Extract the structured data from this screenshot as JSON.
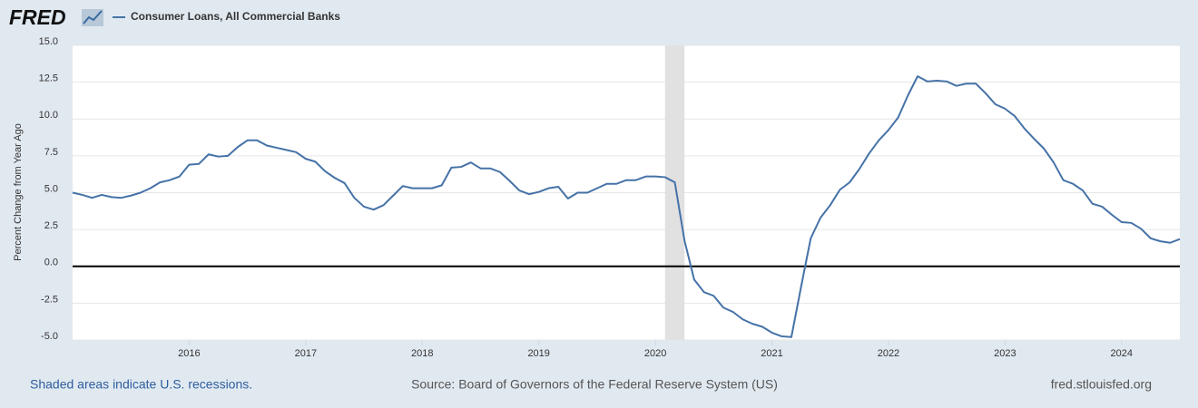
{
  "logo": "FRED",
  "chart_data": {
    "type": "line",
    "y_label": "Percent Change from Year Ago",
    "note": "Shaded areas indicate U.S. recessions.",
    "source": "Source: Board of Governors of the Federal Reserve System (US)",
    "website": "fred.stlouisfed.org",
    "x": [
      2015.0,
      2015.083,
      2015.167,
      2015.25,
      2015.333,
      2015.417,
      2015.5,
      2015.583,
      2015.667,
      2015.75,
      2015.833,
      2015.917,
      2016.0,
      2016.083,
      2016.167,
      2016.25,
      2016.333,
      2016.417,
      2016.5,
      2016.583,
      2016.667,
      2016.75,
      2016.833,
      2016.917,
      2017.0,
      2017.083,
      2017.167,
      2017.25,
      2017.333,
      2017.417,
      2017.5,
      2017.583,
      2017.667,
      2017.75,
      2017.833,
      2017.917,
      2018.0,
      2018.083,
      2018.167,
      2018.25,
      2018.333,
      2018.417,
      2018.5,
      2018.583,
      2018.667,
      2018.75,
      2018.833,
      2018.917,
      2019.0,
      2019.083,
      2019.167,
      2019.25,
      2019.333,
      2019.417,
      2019.5,
      2019.583,
      2019.667,
      2019.75,
      2019.833,
      2019.917,
      2020.0,
      2020.083,
      2020.167,
      2020.25,
      2020.333,
      2020.417,
      2020.5,
      2020.583,
      2020.667,
      2020.75,
      2020.833,
      2020.917,
      2021.0,
      2021.083,
      2021.167,
      2021.25,
      2021.333,
      2021.417,
      2021.5,
      2021.583,
      2021.667,
      2021.75,
      2021.833,
      2021.917,
      2022.0,
      2022.083,
      2022.167,
      2022.25,
      2022.333,
      2022.417,
      2022.5,
      2022.583,
      2022.667,
      2022.75,
      2022.833,
      2022.917,
      2023.0,
      2023.083,
      2023.167,
      2023.25,
      2023.333,
      2023.417,
      2023.5,
      2023.583,
      2023.667,
      2023.75,
      2023.833,
      2023.917,
      2024.0,
      2024.083,
      2024.167,
      2024.25,
      2024.333,
      2024.417,
      2024.5
    ],
    "series": [
      {
        "name": "Consumer Loans, All Commercial Banks",
        "color": "#4572a7",
        "values": [
          5.0,
          4.85,
          4.65,
          4.85,
          4.7,
          4.65,
          4.8,
          5.0,
          5.3,
          5.7,
          5.85,
          6.1,
          6.9,
          6.95,
          7.6,
          7.45,
          7.5,
          8.1,
          8.55,
          8.55,
          8.2,
          8.05,
          7.9,
          7.75,
          7.3,
          7.1,
          6.45,
          6.0,
          5.65,
          4.65,
          4.05,
          3.85,
          4.15,
          4.8,
          5.45,
          5.3,
          5.3,
          5.3,
          5.5,
          6.7,
          6.75,
          7.05,
          6.65,
          6.65,
          6.4,
          5.8,
          5.15,
          4.9,
          5.05,
          5.3,
          5.4,
          4.6,
          5.0,
          5.0,
          5.3,
          5.6,
          5.6,
          5.85,
          5.85,
          6.1,
          6.1,
          6.05,
          5.7,
          1.75,
          -0.9,
          -1.75,
          -2.0,
          -2.8,
          -3.1,
          -3.6,
          -3.9,
          -4.1,
          -4.5,
          -4.75,
          -4.8,
          -1.4,
          1.9,
          3.3,
          4.15,
          5.2,
          5.7,
          6.6,
          7.65,
          8.55,
          9.25,
          10.1,
          11.6,
          12.9,
          12.55,
          12.6,
          12.55,
          12.25,
          12.4,
          12.4,
          11.75,
          11.0,
          10.7,
          10.2,
          9.35,
          8.65,
          8.0,
          7.05,
          5.85,
          5.6,
          5.15,
          4.25,
          4.05,
          3.5,
          3.0,
          2.95,
          2.55,
          1.9,
          1.7,
          1.6,
          1.85
        ]
      }
    ],
    "recessions": [
      {
        "start": 2020.083,
        "end": 2020.25
      }
    ],
    "recession_color": "#e1e1e1",
    "reference_line": 0,
    "xlim": [
      2015.0,
      2024.5
    ],
    "xticks": [
      2016,
      2017,
      2018,
      2019,
      2020,
      2021,
      2022,
      2023,
      2024
    ],
    "ylim": [
      -5,
      15
    ],
    "yticks": [
      {
        "value": -5,
        "label": "-5.0"
      },
      -2.5,
      {
        "value": 0,
        "label": "0.0"
      },
      2.5,
      {
        "value": 5,
        "label": "5.0"
      },
      7.5,
      {
        "value": 10,
        "label": "10.0"
      },
      12.5,
      {
        "value": 15,
        "label": "15.0"
      }
    ],
    "grid": true
  }
}
